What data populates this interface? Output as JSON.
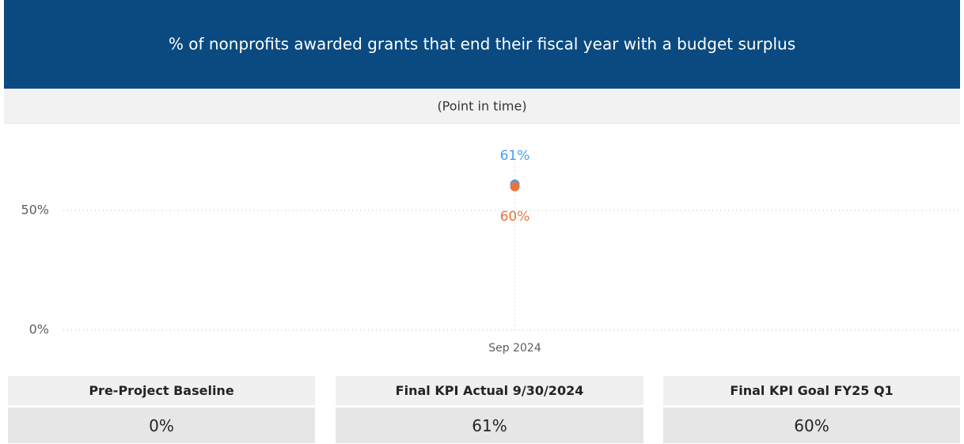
{
  "header": {
    "title": "% of nonprofits awarded grants that end their fiscal year with a budget surplus",
    "subtitle": "(Point in time)"
  },
  "chart_data": {
    "type": "scatter",
    "categories": [
      "Sep 2024"
    ],
    "series": [
      {
        "color": "#4a9eea",
        "values": [
          61
        ],
        "value_labels": [
          "61%"
        ]
      },
      {
        "color": "#e8743b",
        "values": [
          60
        ],
        "value_labels": [
          "60%"
        ]
      }
    ],
    "ylim": [
      0,
      70
    ],
    "yticks": [
      {
        "value": 0,
        "label": "0%"
      },
      {
        "value": 50,
        "label": "50%"
      }
    ],
    "grid": true
  },
  "cards": [
    {
      "label": "Pre-Project Baseline",
      "value": "0%"
    },
    {
      "label": "Final KPI Actual 9/30/2024",
      "value": "61%"
    },
    {
      "label": "Final KPI Goal FY25 Q1",
      "value": "60%"
    }
  ]
}
